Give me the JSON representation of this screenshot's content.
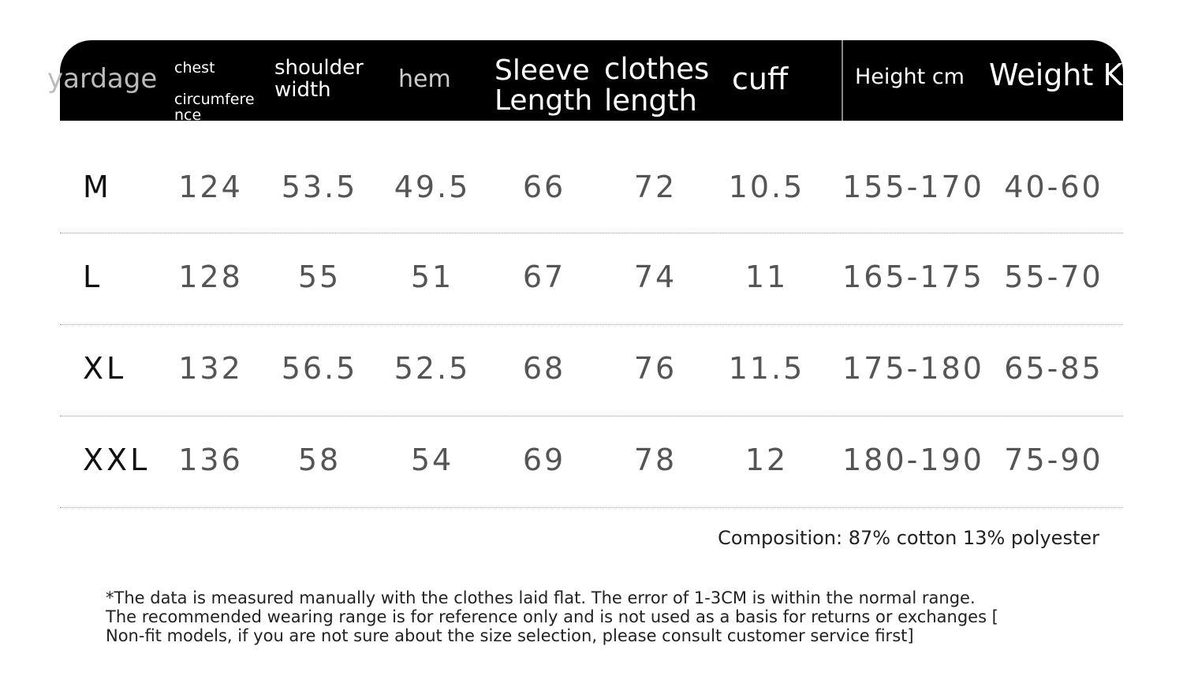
{
  "header": {
    "yardage": "yardage",
    "chest_line1": "chest",
    "chest_line2": "circumfere",
    "chest_line3": "nce",
    "shoulder_line1": "shoulder",
    "shoulder_line2": "width",
    "hem": "hem",
    "sleeve_line1": "Sleeve",
    "sleeve_line2": "Length",
    "clothes_line1": "clothes",
    "clothes_line2": "length",
    "cuff": "cuff",
    "height": "Height cm",
    "weight": "Weight KG"
  },
  "rows": [
    {
      "size": "M",
      "chest": "124",
      "shoulder": "53.5",
      "hem": "49.5",
      "sleeve": "66",
      "length": "72",
      "cuff": "10.5",
      "height": "155-170",
      "weight": "40-60"
    },
    {
      "size": "L",
      "chest": "128",
      "shoulder": "55",
      "hem": "51",
      "sleeve": "67",
      "length": "74",
      "cuff": "11",
      "height": "165-175",
      "weight": "55-70"
    },
    {
      "size": "XL",
      "chest": "132",
      "shoulder": "56.5",
      "hem": "52.5",
      "sleeve": "68",
      "length": "76",
      "cuff": "11.5",
      "height": "175-180",
      "weight": "65-85"
    },
    {
      "size": "XXL",
      "chest": "136",
      "shoulder": "58",
      "hem": "54",
      "sleeve": "69",
      "length": "78",
      "cuff": "12",
      "height": "180-190",
      "weight": "75-90"
    }
  ],
  "composition": "Composition: 87% cotton 13% polyester",
  "note": {
    "line1": "*The data is measured manually with the clothes laid flat. The error of 1-3CM is within the normal range.",
    "line2": "The recommended wearing range is for reference only and is not used as a basis for returns or exchanges [",
    "line3": "Non-fit models, if you are not sure about the size selection, please consult customer service first]"
  }
}
